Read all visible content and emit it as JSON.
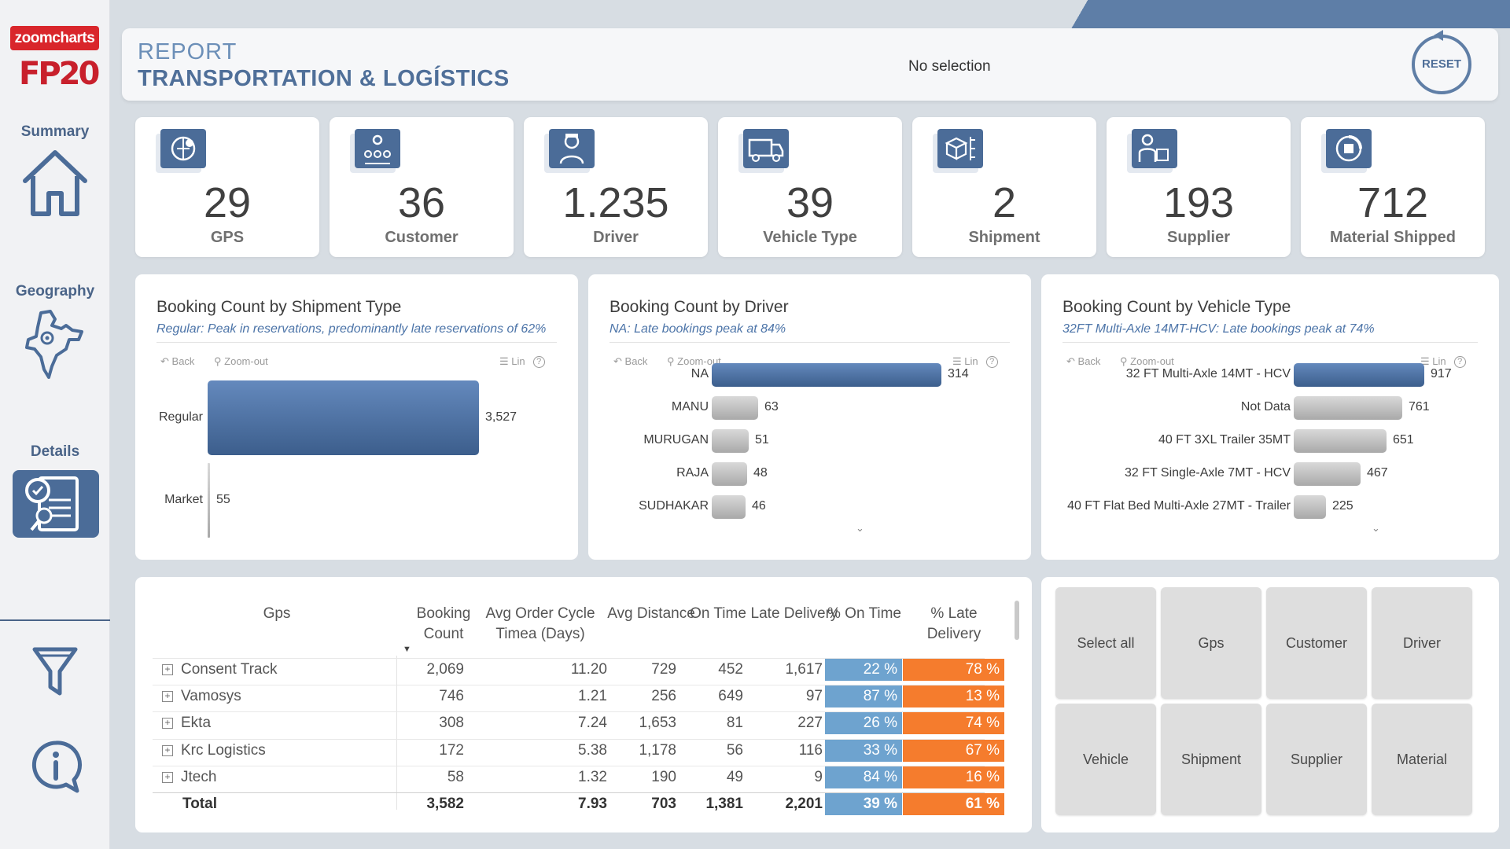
{
  "sidebar": {
    "logo_text": "zoomcharts",
    "brand_text": "FP20",
    "items": [
      {
        "label": "Summary"
      },
      {
        "label": "Geography"
      },
      {
        "label": "Details"
      }
    ],
    "icons": [
      "home-icon",
      "india-map-icon",
      "details-report-icon",
      "filter-icon",
      "info-chat-icon"
    ]
  },
  "header": {
    "subtitle": "REPORT",
    "title": "TRANSPORTATION & LOGÍSTICS",
    "selection_status": "No selection",
    "reset_label": "RESET"
  },
  "kpis": [
    {
      "value": "29",
      "label": "GPS",
      "icon": "gps-globe-icon"
    },
    {
      "value": "36",
      "label": "Customer",
      "icon": "customers-icon"
    },
    {
      "value": "1.235",
      "label": "Driver",
      "icon": "driver-icon"
    },
    {
      "value": "39",
      "label": "Vehicle Type",
      "icon": "truck-icon"
    },
    {
      "value": "2",
      "label": "Shipment",
      "icon": "shipment-box-icon"
    },
    {
      "value": "193",
      "label": "Supplier",
      "icon": "supplier-icon"
    },
    {
      "value": "712",
      "label": "Material Shipped",
      "icon": "material-icon"
    }
  ],
  "toolbar": {
    "back": "Back",
    "zoom_out": "Zoom-out",
    "lin": "Lin",
    "help": "?"
  },
  "charts": [
    {
      "title": "Booking Count by Shipment Type",
      "subtitle": "Regular: Peak in reservations, predominantly late reservations of 62%",
      "chart_data": {
        "type": "bar",
        "orientation": "horizontal",
        "categories": [
          "Regular",
          "Market"
        ],
        "values": [
          3527,
          55
        ],
        "value_labels": [
          "3,527",
          "55"
        ],
        "highlight_index": 0
      }
    },
    {
      "title": "Booking Count by Driver",
      "subtitle": "NA: Late bookings peak at 84%",
      "chart_data": {
        "type": "bar",
        "orientation": "horizontal",
        "categories": [
          "NA",
          "MANU",
          "MURUGAN",
          "RAJA",
          "SUDHAKAR"
        ],
        "values": [
          314,
          63,
          51,
          48,
          46
        ],
        "value_labels": [
          "314",
          "63",
          "51",
          "48",
          "46"
        ],
        "highlight_index": 0
      }
    },
    {
      "title": "Booking Count by Vehicle Type",
      "subtitle": "32FT Multi-Axle 14MT-HCV: Late bookings peak at 74%",
      "chart_data": {
        "type": "bar",
        "orientation": "horizontal",
        "categories": [
          "32 FT Multi-Axle 14MT - HCV",
          "Not Data",
          "40 FT 3XL Trailer 35MT",
          "32 FT Single-Axle 7MT - HCV",
          "40 FT Flat Bed Multi-Axle 27MT - Trailer"
        ],
        "values": [
          917,
          761,
          651,
          467,
          225
        ],
        "value_labels": [
          "917",
          "761",
          "651",
          "467",
          "225"
        ],
        "highlight_index": 0
      }
    }
  ],
  "table": {
    "headers": [
      "Gps",
      "Booking Count",
      "Avg Order Cycle Timea (Days)",
      "Avg Distance",
      "On Time",
      "Late Delivery",
      "% On Time",
      "% Late Delivery"
    ],
    "rows": [
      {
        "gps": "Consent Track",
        "booking": "2,069",
        "cycle": "11.20",
        "distance": "729",
        "ontime": "452",
        "late": "1,617",
        "pct_on": "22 %",
        "pct_late": "78 %"
      },
      {
        "gps": "Vamosys",
        "booking": "746",
        "cycle": "1.21",
        "distance": "256",
        "ontime": "649",
        "late": "97",
        "pct_on": "87 %",
        "pct_late": "13 %"
      },
      {
        "gps": "Ekta",
        "booking": "308",
        "cycle": "7.24",
        "distance": "1,653",
        "ontime": "81",
        "late": "227",
        "pct_on": "26 %",
        "pct_late": "74 %"
      },
      {
        "gps": "Krc Logistics",
        "booking": "172",
        "cycle": "5.38",
        "distance": "1,178",
        "ontime": "56",
        "late": "116",
        "pct_on": "33 %",
        "pct_late": "67 %"
      },
      {
        "gps": "Jtech",
        "booking": "58",
        "cycle": "1.32",
        "distance": "190",
        "ontime": "49",
        "late": "9",
        "pct_on": "84 %",
        "pct_late": "16 %"
      }
    ],
    "total": {
      "gps": "Total",
      "booking": "3,582",
      "cycle": "7.93",
      "distance": "703",
      "ontime": "1,381",
      "late": "2,201",
      "pct_on": "39 %",
      "pct_late": "61 %"
    }
  },
  "slicers": [
    "Select all",
    "Gps",
    "Customer",
    "Driver",
    "Vehicle",
    "Shipment",
    "Supplier",
    "Material"
  ],
  "colors": {
    "accent": "#4b6c98",
    "on_time": "#6ea3cf",
    "late": "#f57c2d",
    "bar_highlight": "#4f73a3",
    "bar_other": "#c4c4c4"
  }
}
